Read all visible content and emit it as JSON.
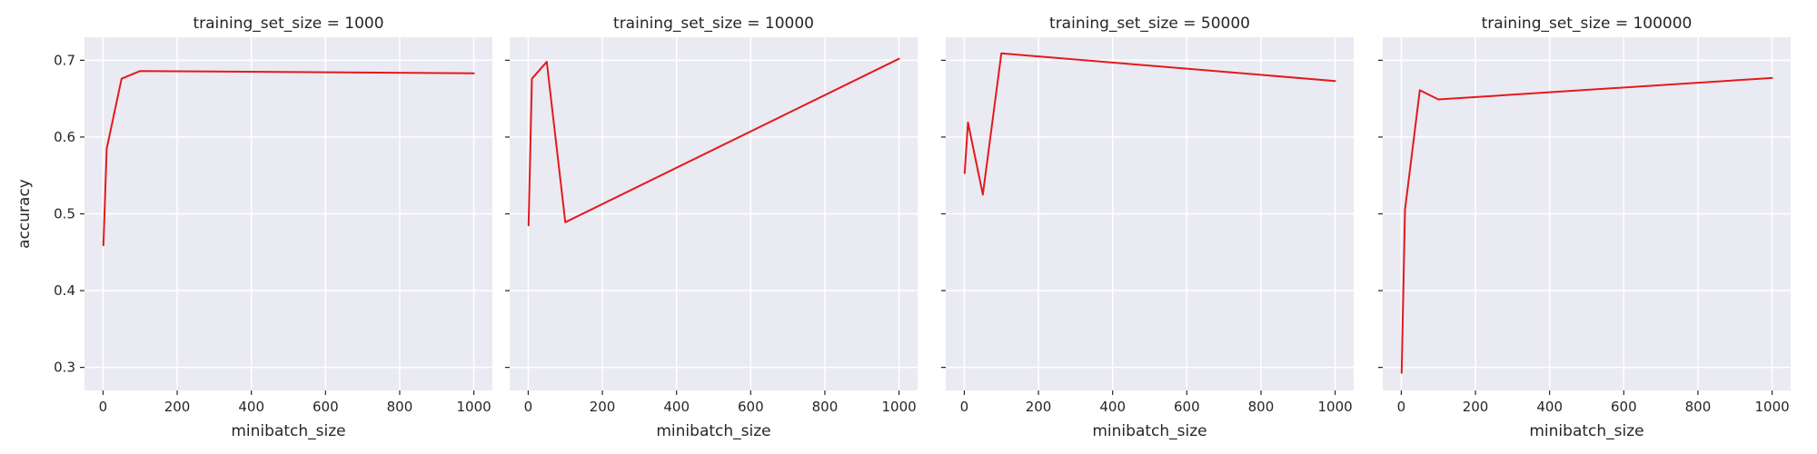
{
  "chart_data": {
    "type": "line",
    "grid": true,
    "colors": {
      "series": "#e31a1c",
      "panel_background": "#eaeaf2",
      "grid": "#ffffff"
    },
    "shared_y_axis": true,
    "ylabel": "accuracy",
    "ylim": [
      0.27,
      0.73
    ],
    "yticks": [
      0.3,
      0.4,
      0.5,
      0.6,
      0.7
    ],
    "xlim": [
      -50,
      1050
    ],
    "xticks": [
      0,
      200,
      400,
      600,
      800,
      1000
    ],
    "panels": [
      {
        "title": "training_set_size = 1000",
        "xlabel": "minibatch_size",
        "x": [
          1,
          10,
          50,
          100,
          1000
        ],
        "y": [
          0.459,
          0.585,
          0.676,
          0.686,
          0.683
        ]
      },
      {
        "title": "training_set_size = 10000",
        "xlabel": "minibatch_size",
        "x": [
          1,
          10,
          50,
          100,
          1000
        ],
        "y": [
          0.485,
          0.676,
          0.698,
          0.489,
          0.702
        ]
      },
      {
        "title": "training_set_size = 50000",
        "xlabel": "minibatch_size",
        "x": [
          1,
          10,
          50,
          100,
          1000
        ],
        "y": [
          0.553,
          0.619,
          0.525,
          0.709,
          0.673
        ]
      },
      {
        "title": "training_set_size = 100000",
        "xlabel": "minibatch_size",
        "x": [
          1,
          10,
          50,
          100,
          1000
        ],
        "y": [
          0.293,
          0.505,
          0.661,
          0.649,
          0.677
        ]
      }
    ]
  }
}
